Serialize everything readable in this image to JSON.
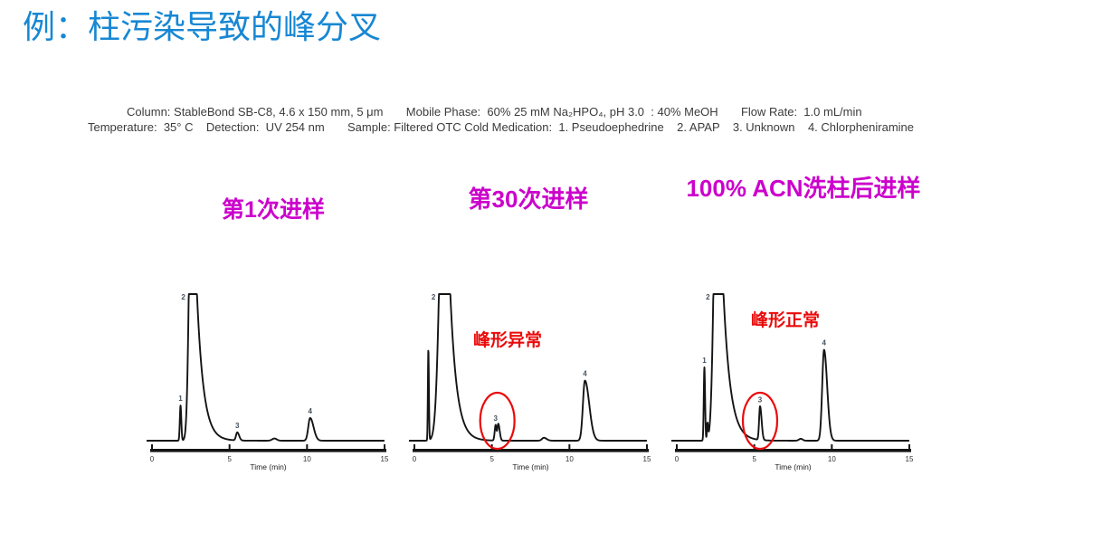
{
  "slide": {
    "title": "例：柱污染导致的峰分叉",
    "conditions_line1": "Column: StableBond SB-C8, 4.6 x 150 mm, 5 μm       Mobile Phase:  60% 25 mM Na₂HPO₄, pH 3.0  : 40% MeOH       Flow Rate:  1.0 mL/min",
    "conditions_line2": "Temperature:  35° C    Detection:  UV 254 nm       Sample: Filtered OTC Cold Medication:  1. Pseudoephedrine    2. APAP    3. Unknown    4. Chlorpheniramine"
  },
  "colors": {
    "title_blue": "#1787d3",
    "magenta": "#cc00cc",
    "red": "#ea0a0a",
    "trace_black": "#141414",
    "text_gray": "#3b3b3b"
  },
  "chart_data": [
    {
      "type": "line",
      "title": "第1次进样",
      "xlabel": "Time (min)",
      "xlim": [
        0,
        15
      ],
      "xticks": [
        0,
        5,
        10,
        15
      ],
      "ylabel": "",
      "grid": false,
      "annotation": null,
      "peaks": [
        {
          "label": "1",
          "time": 1.84,
          "height": 0.24,
          "sigma_left": 0.045,
          "sigma_right": 0.05
        },
        {
          "label": "2",
          "time": 2.57,
          "height": 2.2,
          "sigma_left": 0.16,
          "sigma_right": 0.42,
          "tail": "exp",
          "clipped": true
        },
        {
          "label": "3",
          "time": 5.5,
          "height": 0.055,
          "sigma_left": 0.08,
          "sigma_right": 0.12
        },
        {
          "time": 7.9,
          "height": 0.015,
          "sigma_left": 0.15,
          "sigma_right": 0.15
        },
        {
          "label": "4",
          "time": 10.2,
          "height": 0.155,
          "sigma_left": 0.12,
          "sigma_right": 0.22
        }
      ]
    },
    {
      "type": "line",
      "title": "第30次进样",
      "xlabel": "Time (min)",
      "xlim": [
        0,
        15
      ],
      "xticks": [
        0,
        5,
        10,
        15
      ],
      "ylabel": "",
      "grid": false,
      "annotation": {
        "text": "峰形异常",
        "ellipse_time": 5.35,
        "circled_peak": "3"
      },
      "peaks": [
        {
          "time": 0.9,
          "height": 0.62,
          "sigma_left": 0.03,
          "sigma_right": 0.035
        },
        {
          "label": "2",
          "time": 1.95,
          "height": 2.4,
          "sigma_left": 0.28,
          "sigma_right": 0.42,
          "tail": "exp",
          "clipped": true
        },
        {
          "label": "3",
          "time": 5.24,
          "height": 0.105,
          "sigma_left": 0.06,
          "sigma_right": 0.05,
          "split": true
        },
        {
          "time": 5.41,
          "height": 0.115,
          "sigma_left": 0.06,
          "sigma_right": 0.09,
          "split": true
        },
        {
          "time": 8.35,
          "height": 0.02,
          "sigma_left": 0.12,
          "sigma_right": 0.18
        },
        {
          "label": "4",
          "time": 11.0,
          "height": 0.41,
          "sigma_left": 0.13,
          "sigma_right": 0.28
        }
      ]
    },
    {
      "type": "line",
      "title": "100% ACN洗柱后进样",
      "xlabel": "Time (min)",
      "xlim": [
        0,
        15
      ],
      "xticks": [
        0,
        5,
        10,
        15
      ],
      "ylabel": "",
      "grid": false,
      "annotation": {
        "text": "峰形正常",
        "ellipse_time": 5.37,
        "circled_peak": "3"
      },
      "peaks": [
        {
          "label": "1",
          "time": 1.78,
          "height": 0.5,
          "sigma_left": 0.04,
          "sigma_right": 0.045
        },
        {
          "time": 1.98,
          "height": 0.11,
          "sigma_left": 0.035,
          "sigma_right": 0.04
        },
        {
          "label": "2",
          "time": 2.62,
          "height": 2.4,
          "sigma_left": 0.2,
          "sigma_right": 0.45,
          "tail": "exp",
          "clipped": true
        },
        {
          "label": "3",
          "time": 5.37,
          "height": 0.23,
          "sigma_left": 0.06,
          "sigma_right": 0.1
        },
        {
          "time": 8.0,
          "height": 0.013,
          "sigma_left": 0.12,
          "sigma_right": 0.12
        },
        {
          "label": "4",
          "time": 9.5,
          "height": 0.62,
          "sigma_left": 0.12,
          "sigma_right": 0.2
        }
      ]
    }
  ]
}
